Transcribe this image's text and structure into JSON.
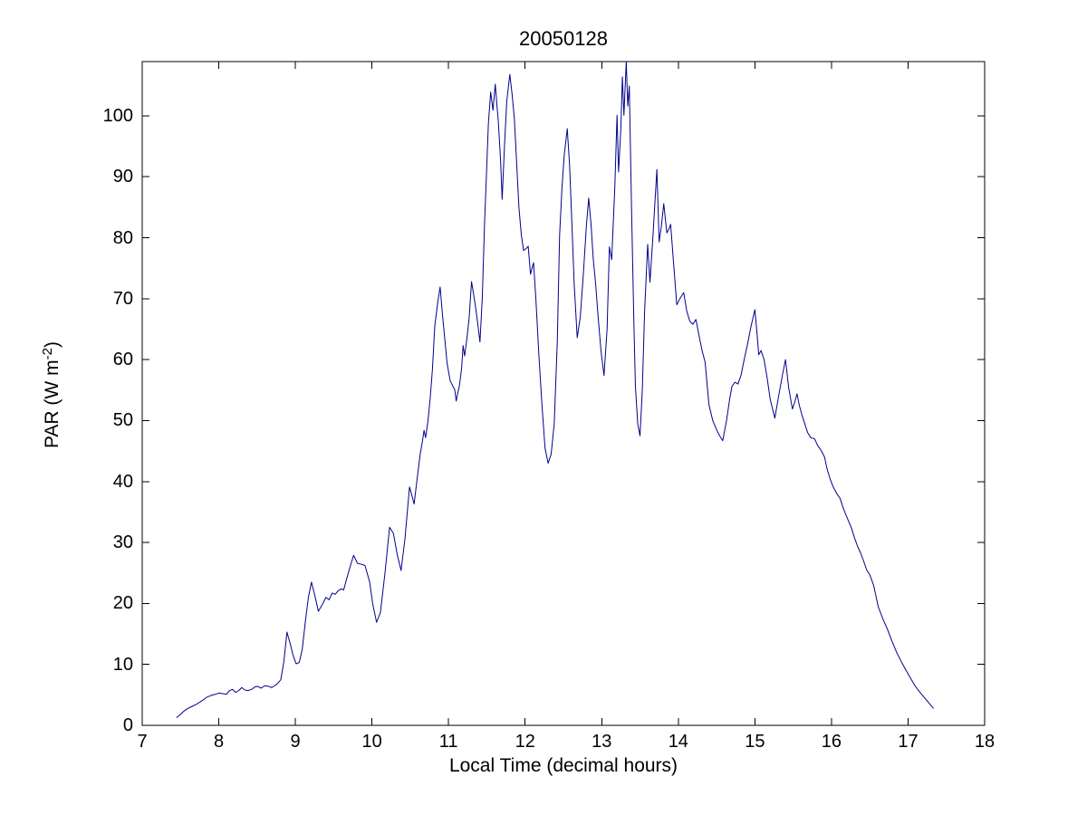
{
  "figure": {
    "background": "#ffffff",
    "axis_color": "#000000"
  },
  "chart_data": {
    "type": "line",
    "title": "20050128",
    "xlabel": "Local Time (decimal hours)",
    "ylabel": "PAR (W m-2)",
    "ylabel_parts": {
      "main": "PAR (W m",
      "sup": "-2",
      "close": ")"
    },
    "xlim": [
      7,
      18
    ],
    "ylim": [
      0,
      108.9
    ],
    "xticks": [
      7,
      8,
      9,
      10,
      11,
      12,
      13,
      14,
      15,
      16,
      17,
      18
    ],
    "yticks": [
      0,
      10,
      20,
      30,
      40,
      50,
      60,
      70,
      80,
      90,
      100
    ],
    "grid": false,
    "legend": "none",
    "line_color": "#00008B",
    "series": [
      {
        "name": "PAR",
        "points": [
          [
            7.45,
            1.3
          ],
          [
            7.5,
            1.8
          ],
          [
            7.55,
            2.4
          ],
          [
            7.6,
            2.8
          ],
          [
            7.65,
            3.1
          ],
          [
            7.7,
            3.4
          ],
          [
            7.75,
            3.8
          ],
          [
            7.8,
            4.2
          ],
          [
            7.84,
            4.6
          ],
          [
            7.88,
            4.8
          ],
          [
            7.92,
            5.0
          ],
          [
            7.96,
            5.1
          ],
          [
            8.0,
            5.3
          ],
          [
            8.05,
            5.2
          ],
          [
            8.1,
            5.1
          ],
          [
            8.14,
            5.7
          ],
          [
            8.18,
            5.9
          ],
          [
            8.22,
            5.4
          ],
          [
            8.26,
            5.7
          ],
          [
            8.3,
            6.2
          ],
          [
            8.34,
            5.8
          ],
          [
            8.38,
            5.7
          ],
          [
            8.43,
            5.9
          ],
          [
            8.47,
            6.3
          ],
          [
            8.51,
            6.4
          ],
          [
            8.55,
            6.1
          ],
          [
            8.6,
            6.5
          ],
          [
            8.65,
            6.4
          ],
          [
            8.69,
            6.2
          ],
          [
            8.73,
            6.5
          ],
          [
            8.77,
            6.9
          ],
          [
            8.81,
            7.5
          ],
          [
            8.85,
            10.5
          ],
          [
            8.89,
            15.3
          ],
          [
            8.93,
            13.5
          ],
          [
            8.97,
            11.5
          ],
          [
            9.01,
            10.1
          ],
          [
            9.05,
            10.3
          ],
          [
            9.09,
            12.5
          ],
          [
            9.13,
            17.0
          ],
          [
            9.17,
            21.0
          ],
          [
            9.21,
            23.5
          ],
          [
            9.26,
            21.0
          ],
          [
            9.3,
            18.7
          ],
          [
            9.35,
            19.8
          ],
          [
            9.4,
            21.0
          ],
          [
            9.44,
            20.6
          ],
          [
            9.48,
            21.7
          ],
          [
            9.52,
            21.5
          ],
          [
            9.56,
            22.1
          ],
          [
            9.6,
            22.4
          ],
          [
            9.63,
            22.2
          ],
          [
            9.66,
            23.6
          ],
          [
            9.7,
            25.4
          ],
          [
            9.76,
            27.9
          ],
          [
            9.81,
            26.6
          ],
          [
            9.87,
            26.4
          ],
          [
            9.91,
            26.2
          ],
          [
            9.97,
            23.5
          ],
          [
            10.01,
            19.9
          ],
          [
            10.06,
            16.9
          ],
          [
            10.11,
            18.5
          ],
          [
            10.17,
            25.0
          ],
          [
            10.23,
            32.5
          ],
          [
            10.28,
            31.5
          ],
          [
            10.33,
            28.0
          ],
          [
            10.38,
            25.4
          ],
          [
            10.43,
            30.5
          ],
          [
            10.49,
            39.1
          ],
          [
            10.52,
            37.8
          ],
          [
            10.55,
            36.3
          ],
          [
            10.59,
            40.5
          ],
          [
            10.63,
            44.5
          ],
          [
            10.66,
            46.7
          ],
          [
            10.68,
            48.4
          ],
          [
            10.7,
            47.2
          ],
          [
            10.73,
            49.8
          ],
          [
            10.76,
            53.6
          ],
          [
            10.79,
            58.5
          ],
          [
            10.82,
            65.5
          ],
          [
            10.86,
            69.5
          ],
          [
            10.89,
            71.9
          ],
          [
            10.92,
            67.5
          ],
          [
            10.95,
            63.5
          ],
          [
            10.98,
            59.5
          ],
          [
            11.02,
            56.6
          ],
          [
            11.05,
            55.8
          ],
          [
            11.08,
            55.1
          ],
          [
            11.1,
            53.2
          ],
          [
            11.12,
            54.5
          ],
          [
            11.14,
            55.6
          ],
          [
            11.17,
            58.5
          ],
          [
            11.19,
            62.3
          ],
          [
            11.21,
            60.6
          ],
          [
            11.24,
            63.5
          ],
          [
            11.27,
            67.0
          ],
          [
            11.3,
            72.8
          ],
          [
            11.33,
            70.5
          ],
          [
            11.36,
            68.0
          ],
          [
            11.39,
            65.0
          ],
          [
            11.41,
            62.9
          ],
          [
            11.44,
            70.0
          ],
          [
            11.47,
            82.3
          ],
          [
            11.5,
            92.0
          ],
          [
            11.52,
            98.7
          ],
          [
            11.55,
            103.9
          ],
          [
            11.58,
            100.9
          ],
          [
            11.61,
            105.2
          ],
          [
            11.63,
            102.0
          ],
          [
            11.65,
            99.0
          ],
          [
            11.68,
            92.5
          ],
          [
            11.7,
            86.3
          ],
          [
            11.73,
            95.0
          ],
          [
            11.76,
            102.4
          ],
          [
            11.8,
            106.8
          ],
          [
            11.83,
            103.5
          ],
          [
            11.86,
            99.4
          ],
          [
            11.89,
            92.0
          ],
          [
            11.92,
            84.8
          ],
          [
            11.95,
            80.5
          ],
          [
            11.98,
            77.9
          ],
          [
            12.02,
            78.3
          ],
          [
            12.04,
            78.6
          ],
          [
            12.07,
            74.0
          ],
          [
            12.09,
            75.0
          ],
          [
            12.11,
            75.9
          ],
          [
            12.14,
            70.0
          ],
          [
            12.18,
            60.6
          ],
          [
            12.22,
            52.5
          ],
          [
            12.26,
            45.5
          ],
          [
            12.3,
            43.0
          ],
          [
            12.34,
            44.5
          ],
          [
            12.38,
            49.5
          ],
          [
            12.42,
            63.0
          ],
          [
            12.45,
            80.4
          ],
          [
            12.48,
            88.0
          ],
          [
            12.51,
            93.5
          ],
          [
            12.55,
            97.9
          ],
          [
            12.58,
            92.0
          ],
          [
            12.61,
            82.5
          ],
          [
            12.64,
            72.5
          ],
          [
            12.68,
            63.6
          ],
          [
            12.72,
            67.0
          ],
          [
            12.76,
            74.0
          ],
          [
            12.8,
            82.0
          ],
          [
            12.83,
            86.5
          ],
          [
            12.86,
            82.3
          ],
          [
            12.89,
            76.4
          ],
          [
            12.92,
            72.5
          ],
          [
            12.95,
            67.5
          ],
          [
            12.99,
            61.5
          ],
          [
            13.03,
            57.4
          ],
          [
            13.07,
            65.0
          ],
          [
            13.1,
            78.5
          ],
          [
            13.13,
            76.4
          ],
          [
            13.17,
            88.0
          ],
          [
            13.2,
            100.1
          ],
          [
            13.22,
            90.8
          ],
          [
            13.25,
            98.0
          ],
          [
            13.27,
            106.4
          ],
          [
            13.29,
            100.1
          ],
          [
            13.32,
            108.9
          ],
          [
            13.34,
            101.6
          ],
          [
            13.36,
            104.9
          ],
          [
            13.39,
            84.4
          ],
          [
            13.42,
            66.0
          ],
          [
            13.44,
            55.6
          ],
          [
            13.47,
            49.5
          ],
          [
            13.5,
            47.5
          ],
          [
            13.53,
            55.0
          ],
          [
            13.56,
            68.0
          ],
          [
            13.6,
            78.9
          ],
          [
            13.63,
            72.7
          ],
          [
            13.67,
            80.5
          ],
          [
            13.72,
            91.2
          ],
          [
            13.75,
            79.3
          ],
          [
            13.78,
            82.0
          ],
          [
            13.81,
            85.6
          ],
          [
            13.85,
            80.8
          ],
          [
            13.88,
            81.5
          ],
          [
            13.9,
            82.2
          ],
          [
            13.94,
            75.5
          ],
          [
            13.98,
            69.0
          ],
          [
            14.02,
            70.0
          ],
          [
            14.07,
            71.0
          ],
          [
            14.11,
            68.0
          ],
          [
            14.15,
            66.3
          ],
          [
            14.19,
            65.8
          ],
          [
            14.23,
            66.6
          ],
          [
            14.27,
            64.0
          ],
          [
            14.31,
            61.5
          ],
          [
            14.35,
            59.6
          ],
          [
            14.4,
            52.6
          ],
          [
            14.45,
            50.0
          ],
          [
            14.5,
            48.5
          ],
          [
            14.54,
            47.5
          ],
          [
            14.58,
            46.7
          ],
          [
            14.63,
            50.0
          ],
          [
            14.67,
            53.5
          ],
          [
            14.7,
            55.6
          ],
          [
            14.74,
            56.3
          ],
          [
            14.78,
            56.0
          ],
          [
            14.82,
            57.5
          ],
          [
            14.86,
            60.0
          ],
          [
            14.9,
            62.3
          ],
          [
            14.95,
            65.5
          ],
          [
            15.0,
            68.2
          ],
          [
            15.03,
            64.0
          ],
          [
            15.05,
            60.8
          ],
          [
            15.08,
            61.5
          ],
          [
            15.12,
            60.0
          ],
          [
            15.16,
            57.0
          ],
          [
            15.2,
            53.5
          ],
          [
            15.26,
            50.4
          ],
          [
            15.31,
            54.0
          ],
          [
            15.36,
            57.5
          ],
          [
            15.4,
            60.0
          ],
          [
            15.44,
            55.5
          ],
          [
            15.49,
            51.9
          ],
          [
            15.52,
            53.0
          ],
          [
            15.55,
            54.4
          ],
          [
            15.58,
            52.5
          ],
          [
            15.61,
            51.1
          ],
          [
            15.65,
            49.5
          ],
          [
            15.69,
            48.0
          ],
          [
            15.73,
            47.2
          ],
          [
            15.78,
            47.0
          ],
          [
            15.82,
            45.9
          ],
          [
            15.87,
            45.0
          ],
          [
            15.91,
            44.0
          ],
          [
            15.94,
            42.2
          ],
          [
            15.98,
            40.5
          ],
          [
            16.02,
            39.2
          ],
          [
            16.07,
            38.0
          ],
          [
            16.11,
            37.3
          ],
          [
            16.15,
            35.8
          ],
          [
            16.18,
            34.8
          ],
          [
            16.22,
            33.6
          ],
          [
            16.26,
            32.4
          ],
          [
            16.3,
            30.8
          ],
          [
            16.34,
            29.4
          ],
          [
            16.38,
            28.3
          ],
          [
            16.41,
            27.3
          ],
          [
            16.46,
            25.5
          ],
          [
            16.5,
            24.7
          ],
          [
            16.55,
            23.0
          ],
          [
            16.61,
            19.5
          ],
          [
            16.67,
            17.5
          ],
          [
            16.73,
            15.8
          ],
          [
            16.79,
            13.8
          ],
          [
            16.85,
            12.0
          ],
          [
            16.91,
            10.5
          ],
          [
            16.97,
            9.1
          ],
          [
            17.03,
            7.8
          ],
          [
            17.09,
            6.5
          ],
          [
            17.15,
            5.5
          ],
          [
            17.21,
            4.6
          ],
          [
            17.27,
            3.7
          ],
          [
            17.33,
            2.8
          ]
        ]
      }
    ]
  }
}
